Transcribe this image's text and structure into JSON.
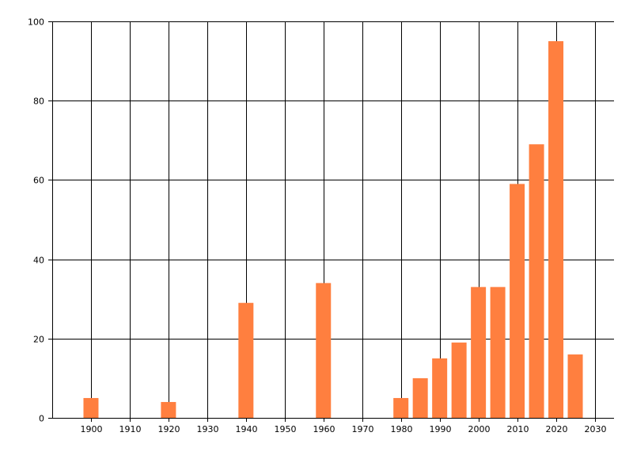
{
  "chart_data": {
    "type": "bar",
    "title": "",
    "xlabel": "",
    "ylabel": "",
    "x": [
      1900,
      1920,
      1940,
      1960,
      1980,
      1985,
      1990,
      1995,
      2000,
      2005,
      2010,
      2015,
      2020,
      2025
    ],
    "values": [
      5,
      4,
      29,
      34,
      5,
      10,
      15,
      19,
      33,
      33,
      59,
      69,
      95,
      16
    ],
    "xlim": [
      1890,
      2035
    ],
    "ylim": [
      0,
      100
    ],
    "x_ticks": [
      1900,
      1910,
      1920,
      1930,
      1940,
      1950,
      1960,
      1970,
      1980,
      1990,
      2000,
      2010,
      2020,
      2030
    ],
    "y_ticks": [
      0,
      20,
      40,
      60,
      80,
      100
    ],
    "bar_color": "#ff7f3f",
    "grid": true,
    "legend": "none"
  }
}
